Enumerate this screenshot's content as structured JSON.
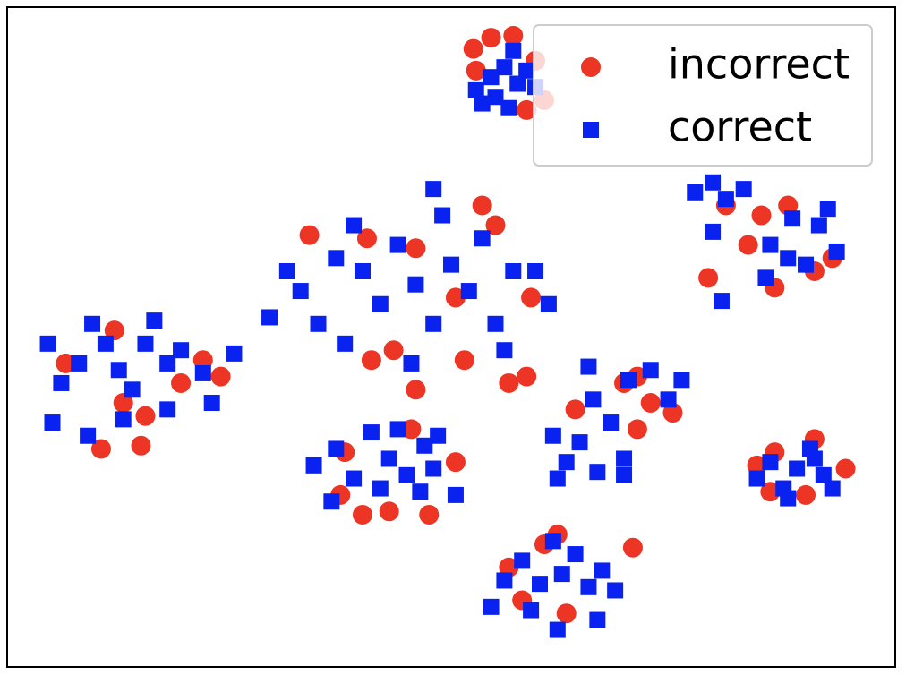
{
  "chart_data": {
    "type": "scatter",
    "legend": "upper right",
    "xlim": [
      0,
      100
    ],
    "ylim": [
      0,
      100
    ],
    "series": [
      {
        "name": "incorrect",
        "color": "#ec3524",
        "marker": "o",
        "x": [
          52.5,
          54.5,
          57,
          59.5,
          52.8,
          60.5,
          58.5,
          81,
          83.5,
          85,
          79,
          86.5,
          91,
          93,
          88,
          34,
          40.5,
          46,
          53.5,
          55,
          50.5,
          41,
          43.5,
          51.5,
          46,
          56.5,
          58.5,
          59,
          6.5,
          12,
          13,
          15.5,
          19.5,
          22,
          10.5,
          15,
          24,
          69.5,
          71,
          72.5,
          75,
          64,
          71,
          37.5,
          40,
          43,
          47.5,
          50.5,
          38,
          45.5,
          84.5,
          86.5,
          91,
          94.5,
          90,
          86,
          56.5,
          60.5,
          62,
          70.5,
          58,
          63
        ],
        "y": [
          93.8,
          95.5,
          95.8,
          92,
          90.5,
          86,
          84.5,
          70,
          64,
          68.5,
          59,
          57.5,
          60,
          62,
          70,
          65.5,
          65,
          63.5,
          70,
          67,
          56,
          46.5,
          48,
          46.5,
          42,
          43,
          44,
          56,
          46,
          51,
          40,
          38,
          43,
          46.5,
          33,
          33.5,
          44,
          43,
          44,
          40,
          38.5,
          39,
          36,
          26,
          23,
          23.5,
          23,
          31,
          32.5,
          36,
          30.5,
          32.5,
          34.5,
          30,
          26,
          26.5,
          15,
          18.5,
          20,
          18,
          10,
          8
        ]
      },
      {
        "name": "correct",
        "color": "#0a22f0",
        "marker": "s",
        "x": [
          52.8,
          54.5,
          56,
          57.5,
          55,
          58.5,
          53.5,
          57,
          56.5,
          59.5,
          77.5,
          79.5,
          81,
          83,
          86,
          88,
          85.5,
          90,
          91.5,
          93.5,
          88.5,
          92.5,
          79.5,
          80.5,
          31.5,
          33,
          35,
          37,
          39,
          40,
          42,
          44,
          46,
          48,
          49,
          50,
          52,
          53.5,
          55,
          57,
          59.5,
          61,
          29.5,
          38,
          45.5,
          48,
          56,
          4.5,
          6,
          8,
          9.5,
          11,
          12.5,
          14,
          15.5,
          16.5,
          18,
          19.5,
          22,
          23,
          5,
          9,
          13,
          18,
          25.5,
          61.5,
          63,
          64.5,
          66,
          65.5,
          68,
          69.5,
          70,
          72.5,
          74.5,
          62,
          66.5,
          69.5,
          76,
          34.5,
          37,
          39,
          41,
          43,
          44,
          45,
          47,
          48.5,
          46.5,
          42,
          50.5,
          36.5,
          48,
          84.5,
          86,
          87.5,
          89,
          90.5,
          92,
          93,
          88,
          91,
          54.5,
          56,
          58,
          60,
          61.5,
          62.5,
          64,
          65.5,
          67,
          68.5,
          59,
          62,
          66.5
        ],
        "y": [
          87.5,
          89.5,
          91,
          88.5,
          86.5,
          90.5,
          85.5,
          93.5,
          84.8,
          88,
          72,
          73.5,
          71,
          72.5,
          64,
          62,
          59,
          61,
          67,
          63,
          68,
          69.5,
          66,
          55.5,
          60,
          57,
          52,
          62,
          67,
          60,
          55,
          64,
          58,
          52,
          68.5,
          61,
          57,
          65,
          52,
          60,
          60,
          55,
          53,
          49,
          46,
          72.5,
          48,
          49,
          43,
          46,
          52,
          49,
          45,
          42,
          49,
          52.5,
          46,
          48,
          44.5,
          40,
          37,
          35,
          37.5,
          39,
          47.5,
          35,
          31,
          34,
          40.5,
          45.5,
          37,
          31.5,
          43.5,
          45,
          40.5,
          28.5,
          29.5,
          29,
          43.5,
          30.5,
          33,
          28.5,
          35.5,
          31.5,
          36,
          29,
          33.5,
          35,
          26.5,
          27,
          26,
          25,
          30,
          28.5,
          31,
          27,
          30,
          33,
          29,
          27,
          25.5,
          31.5,
          9,
          13,
          16,
          12.5,
          19,
          14,
          17,
          12,
          14.5,
          11.5,
          8.5,
          5.5,
          7
        ]
      }
    ]
  }
}
